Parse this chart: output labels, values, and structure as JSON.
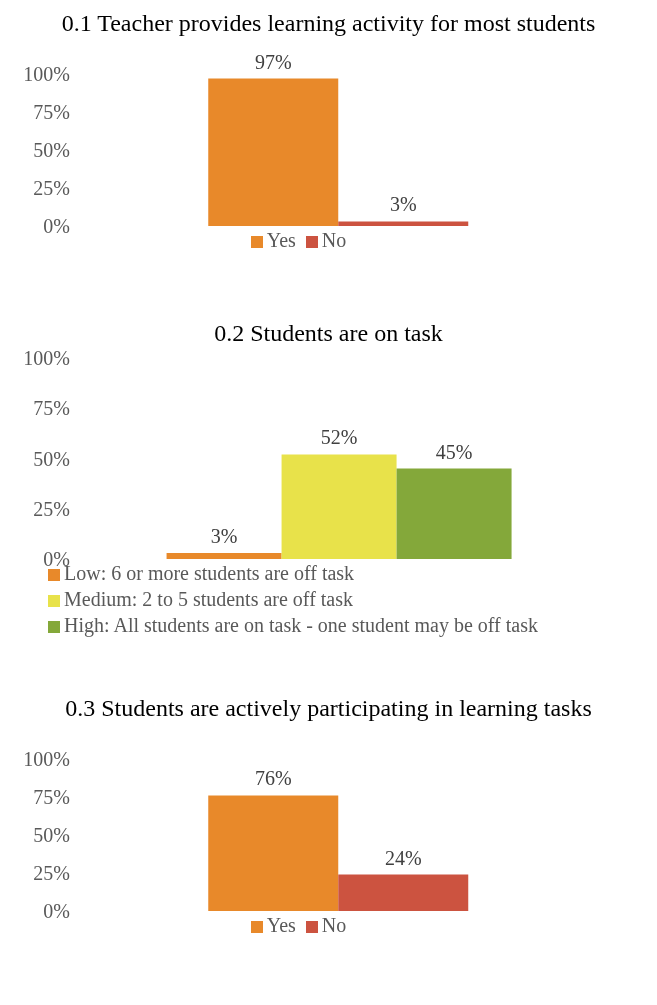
{
  "chart_data": [
    {
      "type": "bar",
      "title": "0.1 Teacher provides learning activity for most students",
      "categories": [
        null
      ],
      "series": [
        {
          "name": "Yes",
          "color": "#e8892a",
          "values": [
            97
          ],
          "value_labels": [
            "97%"
          ]
        },
        {
          "name": "No",
          "color": "#cc5340",
          "values": [
            3
          ],
          "value_labels": [
            "3%"
          ]
        }
      ],
      "ylim": [
        0,
        100
      ],
      "yticks": [
        {
          "value": 0,
          "label": "0%"
        },
        {
          "value": 25,
          "label": "25%"
        },
        {
          "value": 50,
          "label": "50%"
        },
        {
          "value": 75,
          "label": "75%"
        },
        {
          "value": 100,
          "label": "100%"
        }
      ],
      "grid": false,
      "legend": "bottom"
    },
    {
      "type": "bar",
      "title": "0.2 Students are on task",
      "categories": [
        null
      ],
      "series": [
        {
          "name": "Low: 6 or more students are off task",
          "color": "#e8892a",
          "values": [
            3
          ],
          "value_labels": [
            "3%"
          ]
        },
        {
          "name": "Medium: 2 to 5 students are off task",
          "color": "#e8e24a",
          "values": [
            52
          ],
          "value_labels": [
            "52%"
          ]
        },
        {
          "name": "High: All students are on task - one student may be off task",
          "color": "#84a83a",
          "values": [
            45
          ],
          "value_labels": [
            "45%"
          ]
        }
      ],
      "ylim": [
        0,
        100
      ],
      "yticks": [
        {
          "value": 0,
          "label": "0%"
        },
        {
          "value": 25,
          "label": "25%"
        },
        {
          "value": 50,
          "label": "50%"
        },
        {
          "value": 75,
          "label": "75%"
        },
        {
          "value": 100,
          "label": "100%"
        }
      ],
      "grid": false,
      "legend": "bottom left"
    },
    {
      "type": "bar",
      "title": "0.3 Students are actively participating in learning tasks",
      "categories": [
        null
      ],
      "series": [
        {
          "name": "Yes",
          "color": "#e8892a",
          "values": [
            76
          ],
          "value_labels": [
            "76%"
          ]
        },
        {
          "name": "No",
          "color": "#cc5340",
          "values": [
            24
          ],
          "value_labels": [
            "24%"
          ]
        }
      ],
      "ylim": [
        0,
        100
      ],
      "yticks": [
        {
          "value": 0,
          "label": "0%"
        },
        {
          "value": 25,
          "label": "25%"
        },
        {
          "value": 50,
          "label": "50%"
        },
        {
          "value": 75,
          "label": "75%"
        },
        {
          "value": 100,
          "label": "100%"
        }
      ],
      "grid": false,
      "legend": "bottom"
    }
  ]
}
